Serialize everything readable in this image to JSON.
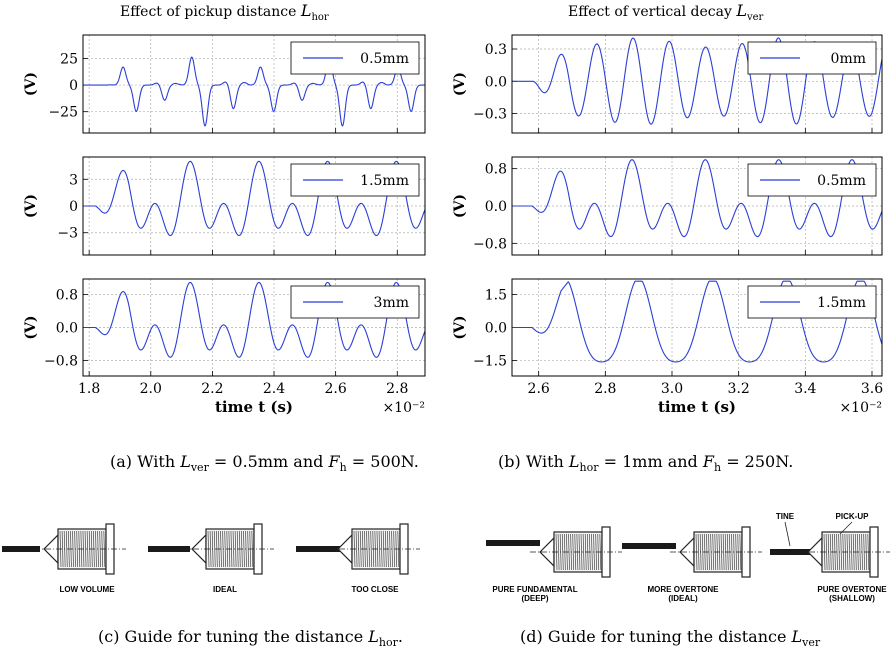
{
  "chart_data": [
    {
      "type": "line",
      "title": "Effect of pickup distance L_hor",
      "ylabel": "(V)",
      "series": [
        {
          "name": "0.5mm"
        }
      ],
      "xlim": [
        0.0178,
        0.0289
      ],
      "ylim": [
        -45,
        47
      ],
      "yticks": [
        -25,
        0,
        25
      ],
      "grid": true,
      "legend": "top-right",
      "waveform": {
        "kind": "pulse",
        "amp": 42,
        "period": 0.00223,
        "first_peak": 0.0191,
        "pulse_width": 9e-05
      },
      "xticks": []
    },
    {
      "type": "line",
      "title": "Effect of vertical decay L_ver",
      "ylabel": "(V)",
      "series": [
        {
          "name": "0mm"
        }
      ],
      "xlim": [
        0.0252,
        0.0363
      ],
      "ylim": [
        -0.48,
        0.43
      ],
      "yticks": [
        -0.3,
        0.0,
        0.3
      ],
      "grid": true,
      "legend": "top-right",
      "waveform": {
        "kind": "sine",
        "amp": 0.36,
        "period": 0.00109,
        "first_peak": 0.02665,
        "onset": 0.0258
      },
      "xticks": []
    },
    {
      "type": "line",
      "ylabel": "(V)",
      "series": [
        {
          "name": "1.5mm"
        }
      ],
      "xlim": [
        0.0178,
        0.0289
      ],
      "ylim": [
        -5.5,
        5.5
      ],
      "yticks": [
        -3,
        0,
        3
      ],
      "grid": true,
      "legend": "top-right",
      "waveform": {
        "kind": "mixed",
        "amp": 4.8,
        "period": 0.00223,
        "first_peak": 0.0191,
        "onset": 0.0182
      },
      "xticks": []
    },
    {
      "type": "line",
      "ylabel": "(V)",
      "series": [
        {
          "name": "0.5mm"
        }
      ],
      "xlim": [
        0.0252,
        0.0363
      ],
      "ylim": [
        -1.05,
        1.05
      ],
      "yticks": [
        -0.8,
        0.0,
        0.8
      ],
      "grid": true,
      "legend": "top-right",
      "waveform": {
        "kind": "mixed",
        "amp": 0.95,
        "period": 0.0022,
        "first_peak": 0.02665,
        "onset": 0.0258
      },
      "xticks": []
    },
    {
      "type": "line",
      "ylabel": "(V)",
      "xlabel": "time t (s)",
      "x_multiplier": "×10⁻²",
      "series": [
        {
          "name": "3mm"
        }
      ],
      "xlim": [
        0.0178,
        0.0289
      ],
      "ylim": [
        -1.18,
        1.18
      ],
      "yticks": [
        -0.8,
        0.0,
        0.8
      ],
      "grid": true,
      "legend": "top-right",
      "waveform": {
        "kind": "mixed",
        "amp": 1.05,
        "period": 0.00223,
        "first_peak": 0.0191,
        "onset": 0.0182
      },
      "xticks": [
        "1.8",
        "2.0",
        "2.2",
        "2.4",
        "2.6",
        "2.8"
      ],
      "xtick_values": [
        0.018,
        0.02,
        0.022,
        0.024,
        0.026,
        0.028
      ]
    },
    {
      "type": "line",
      "ylabel": "(V)",
      "xlabel": "time t (s)",
      "x_multiplier": "×10⁻²",
      "series": [
        {
          "name": "1.5mm"
        }
      ],
      "xlim": [
        0.0252,
        0.0363
      ],
      "ylim": [
        -2.2,
        2.2
      ],
      "yticks": [
        -1.5,
        0.0,
        1.5
      ],
      "grid": true,
      "legend": "top-right",
      "waveform": {
        "kind": "tri",
        "amp": 2.0,
        "period": 0.00222,
        "first_peak": 0.029,
        "onset": 0.0258,
        "early_peak": 1.0
      },
      "xticks": [
        "2.6",
        "2.8",
        "3.0",
        "3.2",
        "3.4",
        "3.6"
      ],
      "xtick_values": [
        0.026,
        0.028,
        0.03,
        0.032,
        0.034,
        0.036
      ]
    }
  ],
  "titles": {
    "left_prefix": "Effect of pickup distance",
    "left_sym": "L",
    "left_sub": "hor",
    "right_prefix": "Effect of vertical decay",
    "right_sym": "L",
    "right_sub": "ver"
  },
  "captions": {
    "a": {
      "prefix": "(a)  With",
      "sym1": "L",
      "sub1": "ver",
      "mid": "= 0.5mm and",
      "sym2": "F",
      "sub2": "h",
      "end": "= 500N."
    },
    "b": {
      "prefix": "(b)  With",
      "sym1": "L",
      "sub1": "hor",
      "mid": "= 1mm and",
      "sym2": "F",
      "sub2": "h",
      "end": "= 250N."
    },
    "c": {
      "prefix": "(c)  Guide for tuning the distance",
      "sym": "L",
      "sub": "hor",
      "end": "."
    },
    "d": {
      "prefix": "(d)  Guide for tuning the distance",
      "sym": "L",
      "sub": "ver",
      "end": ""
    }
  },
  "guides": {
    "c": [
      "LOW VOLUME",
      "IDEAL",
      "TOO CLOSE"
    ],
    "d": [
      "PURE FUNDAMENTAL",
      "(DEEP)",
      "MORE OVERTONE",
      "(IDEAL)",
      "PURE OVERTONE",
      "(SHALLOW)",
      "TINE",
      "PICK-UP"
    ]
  },
  "colors": {
    "line": "#2b3fd6",
    "grid": "#b0b0b0"
  }
}
